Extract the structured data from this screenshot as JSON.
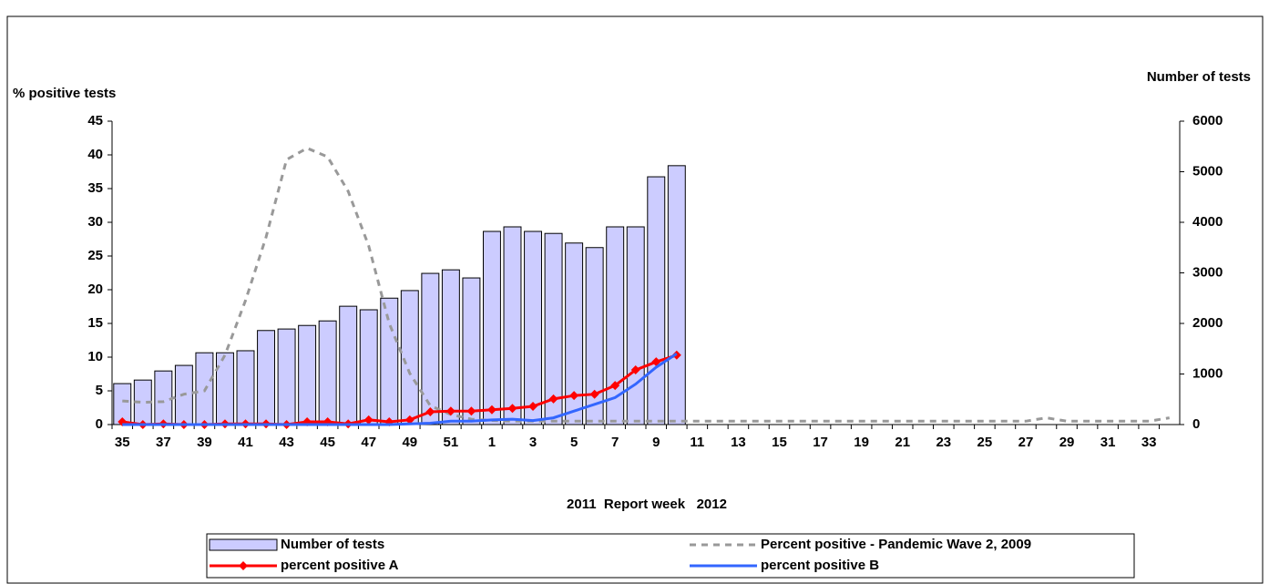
{
  "chart_data": {
    "type": "combo",
    "xlabel": "2011  Report week   2012",
    "ylabel": "% positive tests",
    "y2label": "Number of tests",
    "categories": [
      "35",
      null,
      "37",
      null,
      "39",
      null,
      "41",
      null,
      "43",
      null,
      "45",
      null,
      "47",
      null,
      "49",
      null,
      "51",
      null,
      "1",
      null,
      "3",
      null,
      "5",
      null,
      "7",
      null,
      "9",
      null,
      "11",
      null,
      "13",
      null,
      "15",
      null,
      "17",
      null,
      "19",
      null,
      "21",
      null,
      "23",
      null,
      "25",
      null,
      "27",
      null,
      "29",
      null,
      "31",
      null,
      "33",
      null
    ],
    "ylim": [
      0,
      45
    ],
    "yticks": [
      0,
      5,
      10,
      15,
      20,
      25,
      30,
      35,
      40,
      45
    ],
    "y2lim": [
      0,
      6000
    ],
    "y2ticks": [
      0,
      1000,
      2000,
      3000,
      4000,
      5000,
      6000
    ],
    "legend": "bottom",
    "series": [
      {
        "name": "Number of tests",
        "type": "bar",
        "axis": "y2",
        "color": "#ccccff",
        "values": [
          810,
          880,
          1060,
          1170,
          1420,
          1420,
          1460,
          1860,
          1890,
          1960,
          2050,
          2340,
          2270,
          2500,
          2650,
          2990,
          3060,
          2900,
          3820,
          3910,
          3820,
          3780,
          3590,
          3500,
          3910,
          3910,
          4900,
          5120,
          null,
          null,
          null,
          null,
          null,
          null,
          null,
          null,
          null,
          null,
          null,
          null,
          null,
          null,
          null,
          null,
          null,
          null,
          null,
          null,
          null,
          null,
          null,
          null
        ]
      },
      {
        "name": "Percent positive - Pandemic Wave 2, 2009",
        "type": "line",
        "dash": true,
        "color": "#999999",
        "values": [
          3.5,
          3.3,
          3.4,
          4.5,
          5,
          10.3,
          18.4,
          27.8,
          39.3,
          41,
          39.7,
          34.6,
          26.5,
          15,
          7.6,
          2.8,
          1.5,
          0.8,
          0.6,
          0.5,
          0.5,
          0.5,
          0.5,
          0.5,
          0.5,
          0.5,
          0.5,
          0.5,
          0.5,
          0.5,
          0.5,
          0.5,
          0.5,
          0.5,
          0.5,
          0.5,
          0.5,
          0.5,
          0.5,
          0.5,
          0.5,
          0.5,
          0.5,
          0.5,
          0.5,
          1,
          0.5,
          0.5,
          0.5,
          0.5,
          0.5,
          1
        ]
      },
      {
        "name": "percent positive A",
        "type": "line",
        "marker": "diamond",
        "color": "#ff0000",
        "values": [
          0.4,
          0,
          0.1,
          0,
          0,
          0.1,
          0.1,
          0.1,
          0,
          0.4,
          0.4,
          0.1,
          0.7,
          0.4,
          0.7,
          1.9,
          2,
          2,
          2.2,
          2.4,
          2.7,
          3.8,
          4.3,
          4.5,
          5.8,
          8.1,
          9.3,
          10.3,
          null,
          null,
          null,
          null,
          null,
          null,
          null,
          null,
          null,
          null,
          null,
          null,
          null,
          null,
          null,
          null,
          null,
          null,
          null,
          null,
          null,
          null,
          null,
          null
        ]
      },
      {
        "name": "percent positive B",
        "type": "line",
        "color": "#3366ff",
        "values": [
          0,
          0,
          0,
          0,
          0,
          0,
          0,
          0,
          0,
          0,
          0,
          0,
          0,
          0,
          0.1,
          0.2,
          0.5,
          0.5,
          0.7,
          0.8,
          0.6,
          1,
          2,
          3,
          4,
          6,
          8.5,
          10.5,
          null,
          null,
          null,
          null,
          null,
          null,
          null,
          null,
          null,
          null,
          null,
          null,
          null,
          null,
          null,
          null,
          null,
          null,
          null,
          null,
          null,
          null,
          null,
          null
        ]
      }
    ]
  }
}
